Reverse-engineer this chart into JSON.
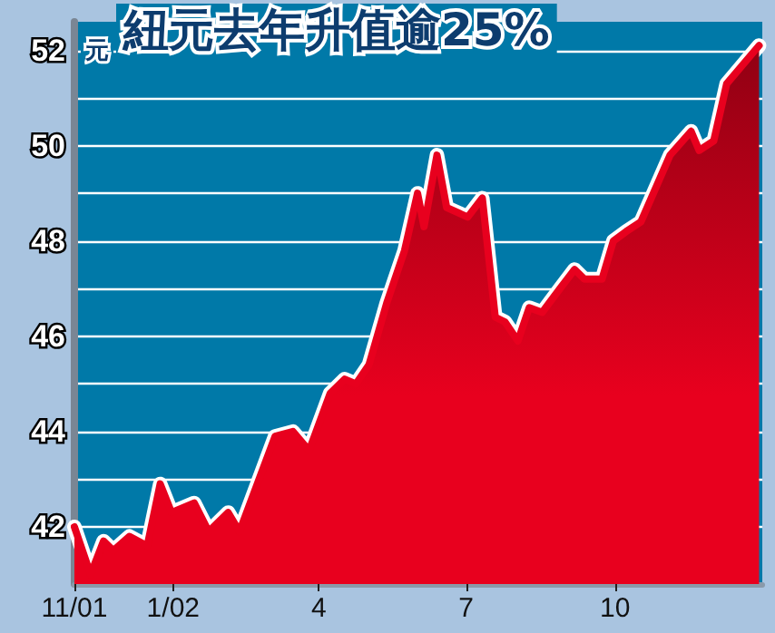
{
  "chart_data": {
    "type": "area",
    "title": "紐元去年升值逾25%",
    "ylabel": "元",
    "x": [
      "2001-11-01",
      "2001-11-11",
      "2001-11-19",
      "2001-11-25",
      "2001-12-05",
      "2001-12-16",
      "2001-12-24",
      "2001-12-31",
      "2002-01-14",
      "2002-01-23",
      "2002-02-04",
      "2002-02-11",
      "2002-03-05",
      "2002-03-16",
      "2002-03-26",
      "2002-04-08",
      "2002-04-17",
      "2002-04-24",
      "2002-05-02",
      "2002-05-13",
      "2002-05-24",
      "2002-06-01",
      "2002-06-05",
      "2002-06-13",
      "2002-06-19",
      "2002-07-02",
      "2002-07-11",
      "2002-07-19",
      "2002-07-25",
      "2002-08-02",
      "2002-08-09",
      "2002-08-17",
      "2002-08-28",
      "2002-09-06",
      "2002-09-12",
      "2002-09-23",
      "2002-09-30",
      "2002-10-08",
      "2002-10-17",
      "2002-11-04",
      "2002-11-17",
      "2002-11-22",
      "2002-12-01",
      "2002-12-09",
      "2002-12-29"
    ],
    "series": [
      {
        "color": "#e8001e",
        "values": [
          42,
          41,
          41.7,
          41.5,
          41.8,
          41.6,
          42.9,
          42.3,
          42.5,
          41.9,
          42.3,
          41.9,
          43.9,
          44,
          43.6,
          44.8,
          45.1,
          45,
          45.4,
          46.7,
          47.8,
          49,
          48.3,
          49.8,
          48.7,
          48.5,
          48.9,
          46.4,
          46.3,
          45.9,
          46.6,
          46.5,
          47,
          47.4,
          47.2,
          47.2,
          48,
          48.2,
          48.4,
          49.8,
          50.3,
          49.9,
          50.1,
          51.3,
          52.1
        ]
      }
    ],
    "xlim": [
      "2001-11-01",
      "2002-12-31"
    ],
    "xticks": [
      {
        "value": "2001-11-01",
        "label": "11/01"
      },
      {
        "value": "2002-01-01",
        "label": "1/02"
      },
      {
        "value": "2002-04-01",
        "label": "4"
      },
      {
        "value": "2002-07-01",
        "label": "7"
      },
      {
        "value": "2002-10-01",
        "label": "10"
      }
    ],
    "ylim": [
      40.8,
      52.6
    ],
    "yticks": [
      42,
      {
        "value": 43,
        "label": null
      },
      44,
      {
        "value": 45,
        "label": null
      },
      46,
      {
        "value": 47,
        "label": null
      },
      48,
      {
        "value": 49,
        "label": null
      },
      50,
      {
        "value": 51,
        "label": null
      },
      52
    ],
    "grid": "y",
    "marker": "none",
    "line_style": "solid"
  }
}
